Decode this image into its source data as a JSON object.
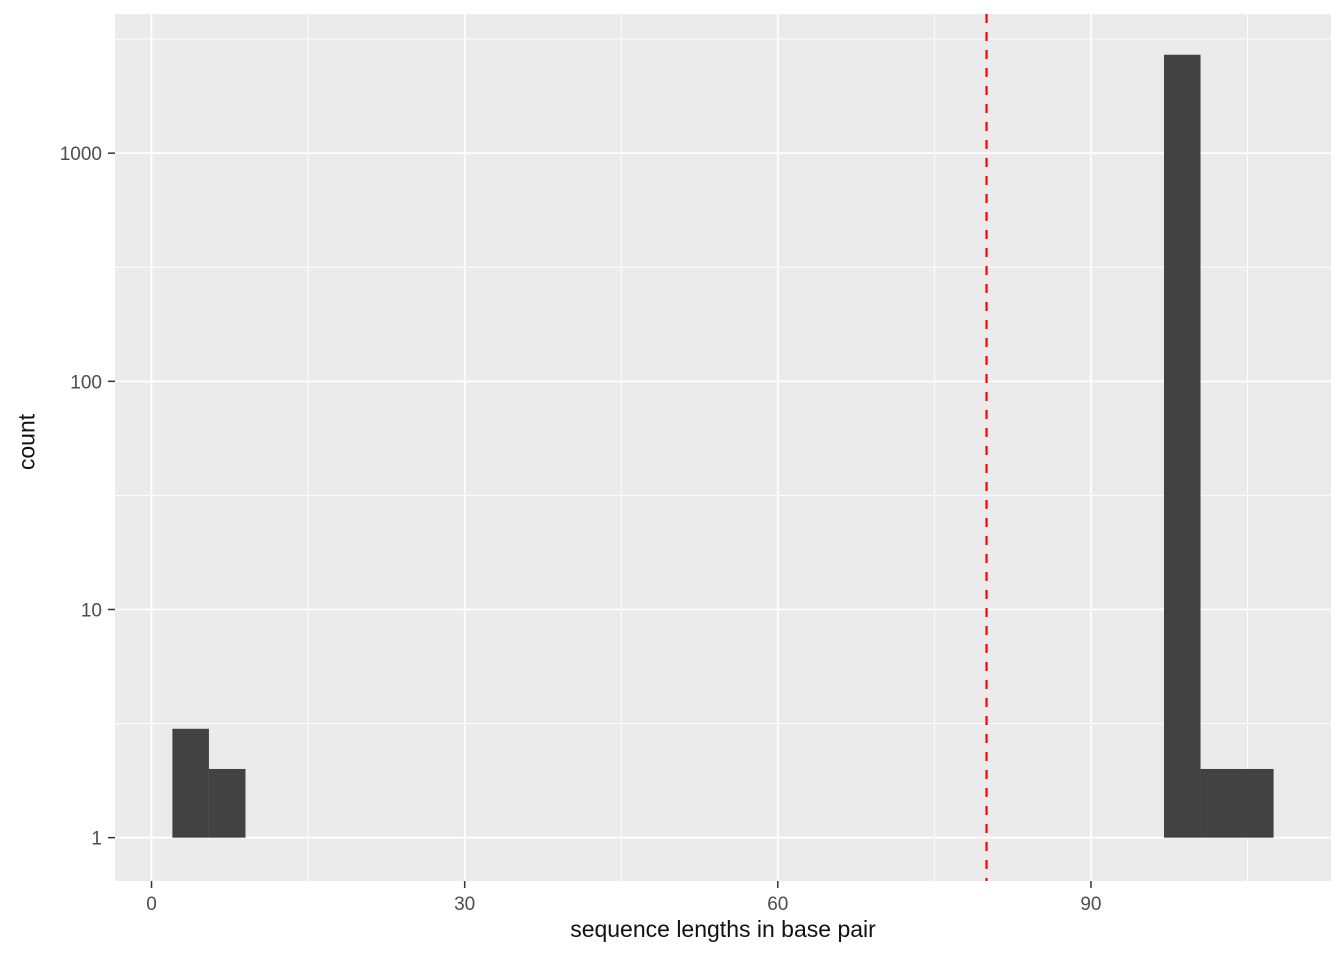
{
  "chart_data": {
    "type": "bar",
    "subtype": "histogram",
    "title": "",
    "xlabel": "sequence lengths in base pair",
    "ylabel": "count",
    "x_ticks": [
      0,
      30,
      60,
      90
    ],
    "x_minor_ticks": [
      15,
      45,
      75,
      105
    ],
    "y_ticks": [
      1,
      10,
      100,
      1000
    ],
    "y_minor_ticks_log": [
      0.5,
      1.5,
      2.5,
      3.5
    ],
    "y_scale": "log10",
    "xlim": [
      -3.5,
      113
    ],
    "ylim_log": [
      -0.19,
      3.61
    ],
    "bins": [
      {
        "x_start": 2,
        "x_end": 5.5,
        "count": 3
      },
      {
        "x_start": 5.5,
        "x_end": 9,
        "count": 2
      },
      {
        "x_start": 97,
        "x_end": 100.5,
        "count": 2700
      },
      {
        "x_start": 100.5,
        "x_end": 107.5,
        "count": 2
      }
    ],
    "vline": {
      "x": 80,
      "style": "dashed",
      "color": "#FF0000"
    },
    "bar_color": "#424242",
    "panel_background": "#EBEBEB",
    "grid_color": "#FFFFFF",
    "tick_label_color": "#4D4D4D",
    "tick_mark_color": "#333333",
    "legend": "none",
    "grid": "on"
  }
}
